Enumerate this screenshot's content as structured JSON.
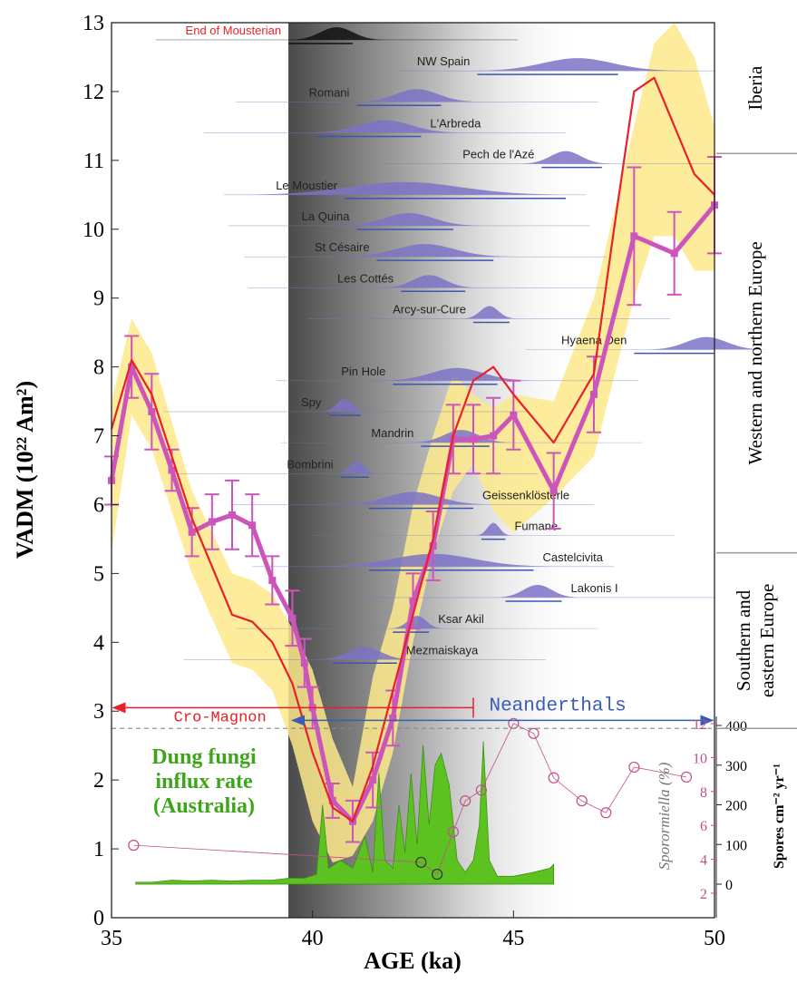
{
  "chart_data": {
    "type": "line",
    "xlabel": "AGE (ka)",
    "ylabel": "VADM (10²² Am²)",
    "xlim": [
      35,
      50
    ],
    "xticks": [
      35,
      40,
      45,
      50
    ],
    "ylim": [
      0,
      13
    ],
    "yticks": [
      0,
      1,
      2,
      3,
      4,
      5,
      6,
      7,
      8,
      9,
      10,
      11,
      12,
      13
    ],
    "series": [
      {
        "color": "#cc55bb",
        "x": [
          35,
          35.5,
          36,
          36.5,
          37,
          37.5,
          38,
          38.5,
          39,
          39.5,
          39.8,
          40,
          40.5,
          41,
          41.5,
          42,
          42.5,
          43,
          43.5,
          44,
          44.5,
          45,
          46,
          47,
          48,
          49,
          50
        ],
        "values": [
          6.35,
          8.0,
          7.35,
          6.5,
          5.6,
          5.75,
          5.85,
          5.7,
          4.9,
          4.35,
          3.7,
          3.05,
          1.7,
          1.4,
          2.0,
          2.9,
          4.6,
          5.4,
          6.95,
          6.95,
          7.0,
          7.3,
          6.2,
          7.6,
          9.9,
          9.65,
          10.35
        ],
        "errors": [
          0.35,
          0.45,
          0.55,
          0.3,
          0.35,
          0.4,
          0.5,
          0.45,
          0.35,
          0.4,
          0.35,
          0.3,
          0.25,
          0.3,
          0.4,
          0.4,
          0.4,
          0.5,
          0.5,
          0.5,
          0.55,
          0.5,
          0.55,
          0.55,
          1.0,
          0.6,
          0.7
        ]
      },
      {
        "color": "#e8202a",
        "x": [
          35,
          35.5,
          36,
          37,
          38,
          38.5,
          39,
          39.5,
          40,
          40.5,
          41,
          41.5,
          42,
          43,
          43.5,
          44,
          44.5,
          45,
          46,
          47,
          47.5,
          48,
          48.5,
          49,
          49.5,
          50
        ],
        "values": [
          7.1,
          8.1,
          7.6,
          5.8,
          4.4,
          4.3,
          4.0,
          3.4,
          2.4,
          1.6,
          1.4,
          2.2,
          3.3,
          5.5,
          7.0,
          7.8,
          8.0,
          7.6,
          6.9,
          7.9,
          10.0,
          12.0,
          12.2,
          11.5,
          10.8,
          10.5
        ]
      }
    ],
    "band": {
      "color": "#fde98a",
      "x": [
        35,
        35.5,
        36,
        37,
        38,
        38.5,
        39,
        39.5,
        40,
        40.5,
        41,
        41.5,
        42,
        42.5,
        43,
        43.5,
        44,
        44.5,
        45,
        46,
        47,
        48,
        48.5,
        49,
        49.5,
        50
      ],
      "upper": [
        7.5,
        8.7,
        8.2,
        6.2,
        5.0,
        4.9,
        4.7,
        4.2,
        3.6,
        2.6,
        1.9,
        3.5,
        4.5,
        6.0,
        7.0,
        7.9,
        7.6,
        7.4,
        7.6,
        7.5,
        9.0,
        11.5,
        12.7,
        13.0,
        12.5,
        11.5
      ],
      "lower": [
        5.3,
        7.3,
        6.8,
        5.0,
        3.7,
        3.6,
        3.3,
        2.5,
        1.4,
        0.8,
        0.9,
        1.4,
        2.4,
        4.0,
        5.3,
        6.2,
        6.6,
        5.9,
        5.6,
        6.1,
        6.7,
        9.0,
        9.9,
        9.9,
        9.4,
        9.4
      ]
    },
    "sites": [
      {
        "name": "End of Mousterian",
        "peak": 40.6,
        "range": [
          39.4,
          41.0
        ]
      },
      {
        "name": "NW Spain",
        "peak": 46.6,
        "range": [
          44.1,
          47.6
        ]
      },
      {
        "name": "Romani",
        "peak": 42.6,
        "range": [
          41.1,
          43.2
        ]
      },
      {
        "name": "L'Arbreda",
        "peak": 41.8,
        "range": [
          40.1,
          42.7
        ]
      },
      {
        "name": "Pech de l'Azé",
        "peak": 46.3,
        "range": [
          45.7,
          47.2
        ]
      },
      {
        "name": "Le Moustier",
        "peak": 42.3,
        "range": [
          40.8,
          46.3
        ]
      },
      {
        "name": "La Quina",
        "peak": 42.4,
        "range": [
          41.1,
          43.5
        ]
      },
      {
        "name": "St Césaire",
        "peak": 42.8,
        "range": [
          41.6,
          44.5
        ]
      },
      {
        "name": "Les Cottés",
        "peak": 42.9,
        "range": [
          42.2,
          43.8
        ]
      },
      {
        "name": "Arcy-sur-Cure",
        "peak": 44.4,
        "range": [
          44.0,
          44.9
        ]
      },
      {
        "name": "Hyaena Den",
        "peak": 49.8,
        "range": [
          48.0,
          50.0
        ]
      },
      {
        "name": "Pin Hole",
        "peak": 43.6,
        "range": [
          42.0,
          44.6
        ]
      },
      {
        "name": "Spy",
        "peak": 40.8,
        "range": [
          40.4,
          41.2
        ]
      },
      {
        "name": "Mandrin",
        "peak": 43.7,
        "range": [
          42.7,
          44.4
        ]
      },
      {
        "name": "Bombrini",
        "peak": 41.1,
        "range": [
          40.7,
          41.4
        ]
      },
      {
        "name": "Geissenklösterle",
        "peak": 42.5,
        "range": [
          41.4,
          44.0
        ]
      },
      {
        "name": "Fumane",
        "peak": 44.5,
        "range": [
          44.2,
          44.8
        ]
      },
      {
        "name": "Castelcivita",
        "peak": 43.0,
        "range": [
          41.4,
          45.5
        ]
      },
      {
        "name": "Lakonis I",
        "peak": 45.6,
        "range": [
          44.8,
          46.2
        ]
      },
      {
        "name": "Ksar Akil",
        "peak": 42.6,
        "range": [
          42.0,
          42.9
        ]
      },
      {
        "name": "Mezmaiskaya",
        "peak": 41.3,
        "range": [
          40.5,
          42.1
        ]
      }
    ],
    "regions": [
      "Iberia",
      "Western and northern Europe",
      [
        "Southern and",
        "eastern Europe"
      ]
    ],
    "cro_magnon": {
      "label": "Cro-Magnon",
      "xrange": [
        35,
        44
      ]
    },
    "neanderthals": {
      "label": "Neanderthals",
      "xrange": [
        39.5,
        50
      ]
    },
    "inset": {
      "title": [
        "Dung fungi",
        "influx rate",
        "(Australia)"
      ],
      "y2label": "Spores cm⁻² yr⁻¹",
      "y2lim": [
        0,
        400
      ],
      "y2ticks": [
        0,
        100,
        200,
        300,
        400
      ],
      "y3label": "Sporormiella (%)",
      "y3lim": [
        2,
        12
      ],
      "y3ticks": [
        2,
        4,
        6,
        8,
        10,
        12
      ],
      "fungi": {
        "color": "#5cc21f",
        "x": [
          35.6,
          36,
          36.5,
          37,
          37.5,
          38,
          38.5,
          39,
          39.4,
          39.8,
          40.1,
          40.25,
          40.4,
          40.7,
          41.0,
          41.3,
          41.5,
          41.65,
          41.8,
          42.0,
          42.15,
          42.3,
          42.45,
          42.6,
          42.75,
          42.9,
          43.05,
          43.2,
          43.4,
          43.6,
          43.8,
          44.0,
          44.15,
          44.25,
          44.4,
          44.6,
          45,
          45.5,
          45.9,
          46.0
        ],
        "values": [
          5,
          5,
          10,
          8,
          10,
          8,
          10,
          10,
          15,
          15,
          25,
          200,
          40,
          60,
          40,
          120,
          30,
          280,
          60,
          40,
          200,
          80,
          280,
          100,
          350,
          150,
          300,
          330,
          250,
          60,
          30,
          60,
          150,
          360,
          60,
          20,
          20,
          30,
          40,
          50
        ]
      },
      "circles": {
        "color": "#c0508a",
        "x": [
          35.55,
          42.7,
          43.1,
          43.5,
          43.8,
          44.2,
          45.0,
          45.5,
          46.0,
          46.7,
          47.3,
          48.0,
          49.3
        ],
        "values": [
          98,
          55,
          25,
          132,
          210,
          237,
          405,
          380,
          268,
          210,
          180,
          295,
          270
        ]
      }
    }
  }
}
